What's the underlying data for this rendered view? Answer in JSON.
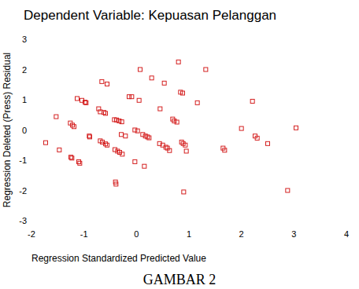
{
  "chart_data": {
    "type": "scatter",
    "title": "Dependent Variable: Kepuasan Pelanggan",
    "x_label": "Regression Standardized Predicted Value",
    "y_label": "Regression Deleted (Press) Residual",
    "caption": "GAMBAR 2",
    "color": "#d42020",
    "marker": "square",
    "xlim": [
      -2,
      4
    ],
    "xticks": [
      -2,
      -1,
      0,
      1,
      2,
      3,
      4
    ],
    "ylim": [
      -3,
      3
    ],
    "yticks": [
      -3,
      -2,
      -1,
      0,
      1,
      2,
      3
    ],
    "grid": false,
    "x": [
      -1.73,
      -1.53,
      -1.47,
      -1.26,
      -1.22,
      -1.19,
      -1.25,
      -1.23,
      -1.1,
      -1.08,
      -1.13,
      -1.04,
      -0.98,
      -0.96,
      -0.9,
      -0.89,
      -0.66,
      -0.56,
      -0.72,
      -0.69,
      -0.62,
      -0.59,
      -0.69,
      -0.65,
      -0.59,
      -0.56,
      -0.42,
      -0.38,
      -0.33,
      -0.28,
      -0.41,
      -0.36,
      -0.32,
      -0.27,
      -0.4,
      -0.39,
      -0.29,
      -0.21,
      -0.14,
      -0.09,
      -0.03,
      0.02,
      0.07,
      0.05,
      0.12,
      0.17,
      0.21,
      0.24,
      -0.03,
      0.15,
      0.29,
      0.44,
      0.5,
      0.53,
      0.56,
      0.59,
      0.63,
      0.45,
      0.69,
      0.72,
      0.77,
      0.86,
      0.89,
      0.93,
      0.8,
      0.84,
      0.88,
      0.95,
      0.9,
      1.32,
      1.16,
      1.65,
      1.68,
      2.0,
      2.21,
      2.26,
      2.3,
      2.5,
      2.88,
      3.04
    ],
    "values": [
      -0.42,
      0.44,
      -0.66,
      0.23,
      0.16,
      0.11,
      -0.9,
      -0.93,
      -1.05,
      -1.1,
      1.04,
      0.98,
      0.92,
      0.9,
      -0.2,
      -0.23,
      1.6,
      1.52,
      0.7,
      0.6,
      0.58,
      0.55,
      -0.36,
      -0.4,
      -0.46,
      -0.5,
      0.34,
      0.33,
      0.3,
      0.27,
      -0.65,
      -0.7,
      -0.74,
      -0.8,
      -1.72,
      -1.79,
      -0.15,
      -0.2,
      1.1,
      1.1,
      0.0,
      -0.03,
      2.0,
      0.98,
      -0.15,
      -0.2,
      -0.23,
      -0.26,
      -1.05,
      -1.2,
      1.72,
      -0.45,
      -0.5,
      1.55,
      -0.57,
      -0.6,
      -0.68,
      0.7,
      0.36,
      0.3,
      0.26,
      -0.4,
      -0.45,
      -0.5,
      2.25,
      1.25,
      1.22,
      -0.7,
      -2.05,
      2.0,
      0.9,
      -0.6,
      -0.67,
      0.05,
      0.95,
      -0.2,
      -0.27,
      -0.45,
      -2.0,
      0.07
    ]
  }
}
